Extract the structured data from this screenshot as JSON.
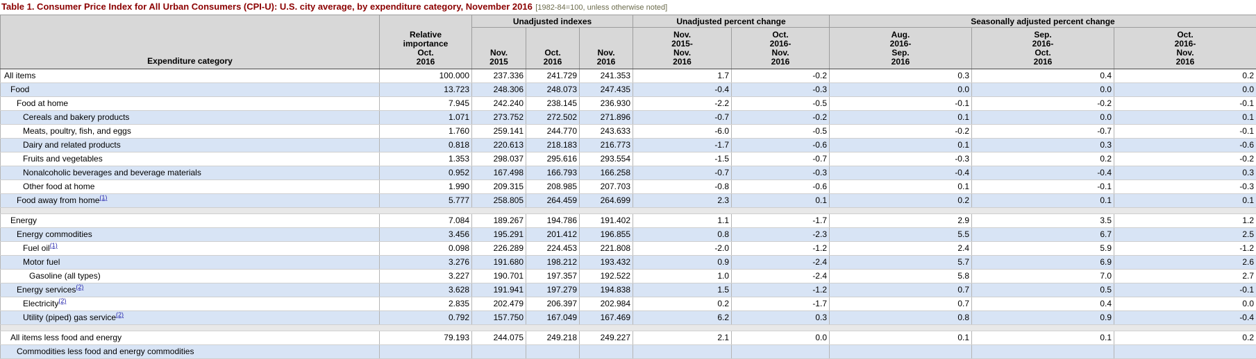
{
  "title": {
    "main": "Table 1. Consumer Price Index for All Urban Consumers (CPI-U): U.S. city average, by expenditure category, November 2016",
    "note": "[1982-84=100, unless otherwise noted]"
  },
  "colors": {
    "title": "#8b0000",
    "note": "#6b6b4b",
    "header_bg": "#d8d8d8",
    "row_blue": "#d8e4f5",
    "separator": "#e8e8e8",
    "footnote_link": "#2222aa"
  },
  "table": {
    "corner_header": "Expenditure category",
    "relative_importance_header": "Relative\nimportance\nOct.\n2016",
    "groups": [
      {
        "label": "Unadjusted indexes",
        "columns": [
          "Nov.\n2015",
          "Oct.\n2016",
          "Nov.\n2016"
        ]
      },
      {
        "label": "Unadjusted percent change",
        "columns": [
          "Nov.\n2015-\nNov.\n2016",
          "Oct.\n2016-\nNov.\n2016"
        ]
      },
      {
        "label": "Seasonally adjusted percent change",
        "columns": [
          "Aug.\n2016-\nSep.\n2016",
          "Sep.\n2016-\nOct.\n2016",
          "Oct.\n2016-\nNov.\n2016"
        ]
      }
    ],
    "rows": [
      {
        "category": "All items",
        "indent": 0,
        "values": [
          "100.000",
          "237.336",
          "241.729",
          "241.353",
          "1.7",
          "-0.2",
          "0.3",
          "0.4",
          "0.2"
        ]
      },
      {
        "category": "Food",
        "indent": 1,
        "values": [
          "13.723",
          "248.306",
          "248.073",
          "247.435",
          "-0.4",
          "-0.3",
          "0.0",
          "0.0",
          "0.0"
        ]
      },
      {
        "category": "Food at home",
        "indent": 2,
        "values": [
          "7.945",
          "242.240",
          "238.145",
          "236.930",
          "-2.2",
          "-0.5",
          "-0.1",
          "-0.2",
          "-0.1"
        ]
      },
      {
        "category": "Cereals and bakery products",
        "indent": 3,
        "values": [
          "1.071",
          "273.752",
          "272.502",
          "271.896",
          "-0.7",
          "-0.2",
          "0.1",
          "0.0",
          "0.1"
        ]
      },
      {
        "category": "Meats, poultry, fish, and eggs",
        "indent": 3,
        "values": [
          "1.760",
          "259.141",
          "244.770",
          "243.633",
          "-6.0",
          "-0.5",
          "-0.2",
          "-0.7",
          "-0.1"
        ]
      },
      {
        "category": "Dairy and related products",
        "indent": 3,
        "values": [
          "0.818",
          "220.613",
          "218.183",
          "216.773",
          "-1.7",
          "-0.6",
          "0.1",
          "0.3",
          "-0.6"
        ]
      },
      {
        "category": "Fruits and vegetables",
        "indent": 3,
        "values": [
          "1.353",
          "298.037",
          "295.616",
          "293.554",
          "-1.5",
          "-0.7",
          "-0.3",
          "0.2",
          "-0.2"
        ]
      },
      {
        "category": "Nonalcoholic beverages and beverage materials",
        "indent": 3,
        "values": [
          "0.952",
          "167.498",
          "166.793",
          "166.258",
          "-0.7",
          "-0.3",
          "-0.4",
          "-0.4",
          "0.3"
        ]
      },
      {
        "category": "Other food at home",
        "indent": 3,
        "values": [
          "1.990",
          "209.315",
          "208.985",
          "207.703",
          "-0.8",
          "-0.6",
          "0.1",
          "-0.1",
          "-0.3"
        ]
      },
      {
        "category": "Food away from home",
        "footnote": "1",
        "indent": 2,
        "values": [
          "5.777",
          "258.805",
          "264.459",
          "264.699",
          "2.3",
          "0.1",
          "0.2",
          "0.1",
          "0.1"
        ]
      },
      {
        "category": "Energy",
        "indent": 1,
        "separator_before": true,
        "values": [
          "7.084",
          "189.267",
          "194.786",
          "191.402",
          "1.1",
          "-1.7",
          "2.9",
          "3.5",
          "1.2"
        ]
      },
      {
        "category": "Energy commodities",
        "indent": 2,
        "values": [
          "3.456",
          "195.291",
          "201.412",
          "196.855",
          "0.8",
          "-2.3",
          "5.5",
          "6.7",
          "2.5"
        ]
      },
      {
        "category": "Fuel oil",
        "footnote": "1",
        "indent": 3,
        "values": [
          "0.098",
          "226.289",
          "224.453",
          "221.808",
          "-2.0",
          "-1.2",
          "2.4",
          "5.9",
          "-1.2"
        ]
      },
      {
        "category": "Motor fuel",
        "indent": 3,
        "values": [
          "3.276",
          "191.680",
          "198.212",
          "193.432",
          "0.9",
          "-2.4",
          "5.7",
          "6.9",
          "2.6"
        ]
      },
      {
        "category": "Gasoline (all types)",
        "indent": 4,
        "values": [
          "3.227",
          "190.701",
          "197.357",
          "192.522",
          "1.0",
          "-2.4",
          "5.8",
          "7.0",
          "2.7"
        ]
      },
      {
        "category": "Energy services",
        "footnote": "2",
        "indent": 2,
        "values": [
          "3.628",
          "191.941",
          "197.279",
          "194.838",
          "1.5",
          "-1.2",
          "0.7",
          "0.5",
          "-0.1"
        ]
      },
      {
        "category": "Electricity",
        "footnote": "2",
        "indent": 3,
        "values": [
          "2.835",
          "202.479",
          "206.397",
          "202.984",
          "0.2",
          "-1.7",
          "0.7",
          "0.4",
          "0.0"
        ]
      },
      {
        "category": "Utility (piped) gas service",
        "footnote": "2",
        "indent": 3,
        "values": [
          "0.792",
          "157.750",
          "167.049",
          "167.469",
          "6.2",
          "0.3",
          "0.8",
          "0.9",
          "-0.4"
        ]
      },
      {
        "category": "All items less food and energy",
        "indent": 1,
        "separator_before": true,
        "values": [
          "79.193",
          "244.075",
          "249.218",
          "249.227",
          "2.1",
          "0.0",
          "0.1",
          "0.1",
          "0.2"
        ]
      },
      {
        "category": "Commodities less food and energy commodities",
        "indent": 2,
        "values": [
          "",
          "",
          "",
          "",
          "",
          "",
          "",
          "",
          ""
        ]
      }
    ]
  }
}
